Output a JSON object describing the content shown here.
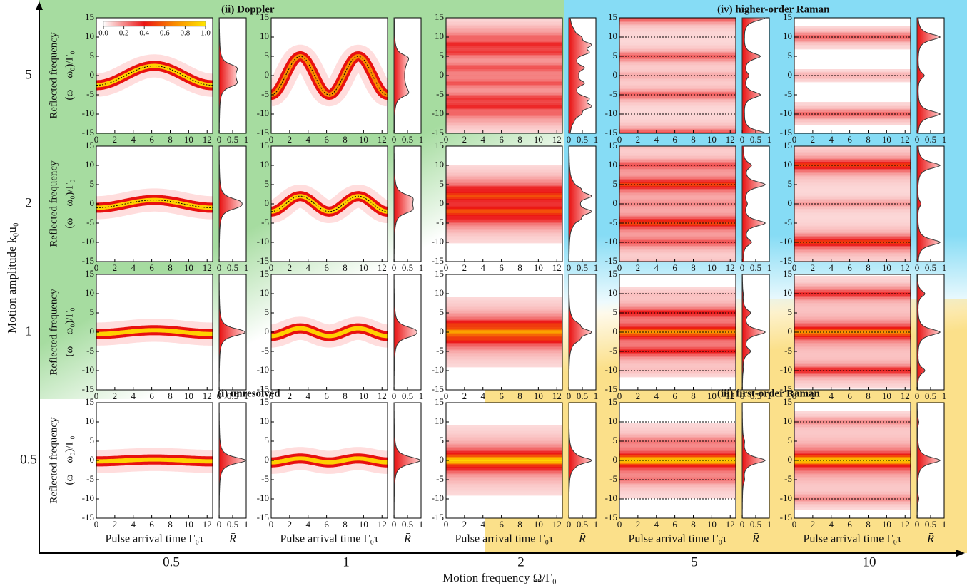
{
  "chart_data": {
    "type": "heatmap",
    "x_label": "Motion frequency Ω/Γ₀",
    "y_label": "Motion amplitude k₀u₀",
    "frequencies": [
      0.5,
      1,
      2,
      5,
      10
    ],
    "amplitudes": [
      5,
      2,
      1,
      0.5
    ],
    "panel_x_label": "Pulse arrival time Γ₀τ",
    "panel_y_label": [
      "Reflected frequency",
      "(ω − ω₀)/Γ₀"
    ],
    "side_x_label": "R̄",
    "xlim": [
      0,
      12.6
    ],
    "xticks": [
      0,
      2,
      4,
      6,
      8,
      10,
      12
    ],
    "ylim": [
      -15,
      15
    ],
    "yticks": [
      -15,
      -10,
      -5,
      0,
      5,
      10,
      15
    ],
    "side_xlim": [
      0,
      1
    ],
    "side_xticks": [
      0,
      0.5,
      1
    ],
    "colorbar_ticks": [
      {
        "value": 0,
        "label": "0.0"
      },
      0.2,
      0.4,
      0.6,
      0.8,
      {
        "value": 1,
        "label": "1.0"
      }
    ],
    "regions": [
      {
        "label": "(ii) Doppler",
        "color": "#a6dca0",
        "text_color": "#2e7d1e"
      },
      {
        "label": "(iv) higher-order Raman",
        "color": "#86dcf5",
        "text_color": "#1a237e"
      },
      {
        "label": "(i) unresolved",
        "color": "#ffffff",
        "text_color": "#666666"
      },
      {
        "label": "(iii) first-order Raman",
        "color": "#fbe08a",
        "text_color": "#7a6a1a"
      }
    ]
  }
}
